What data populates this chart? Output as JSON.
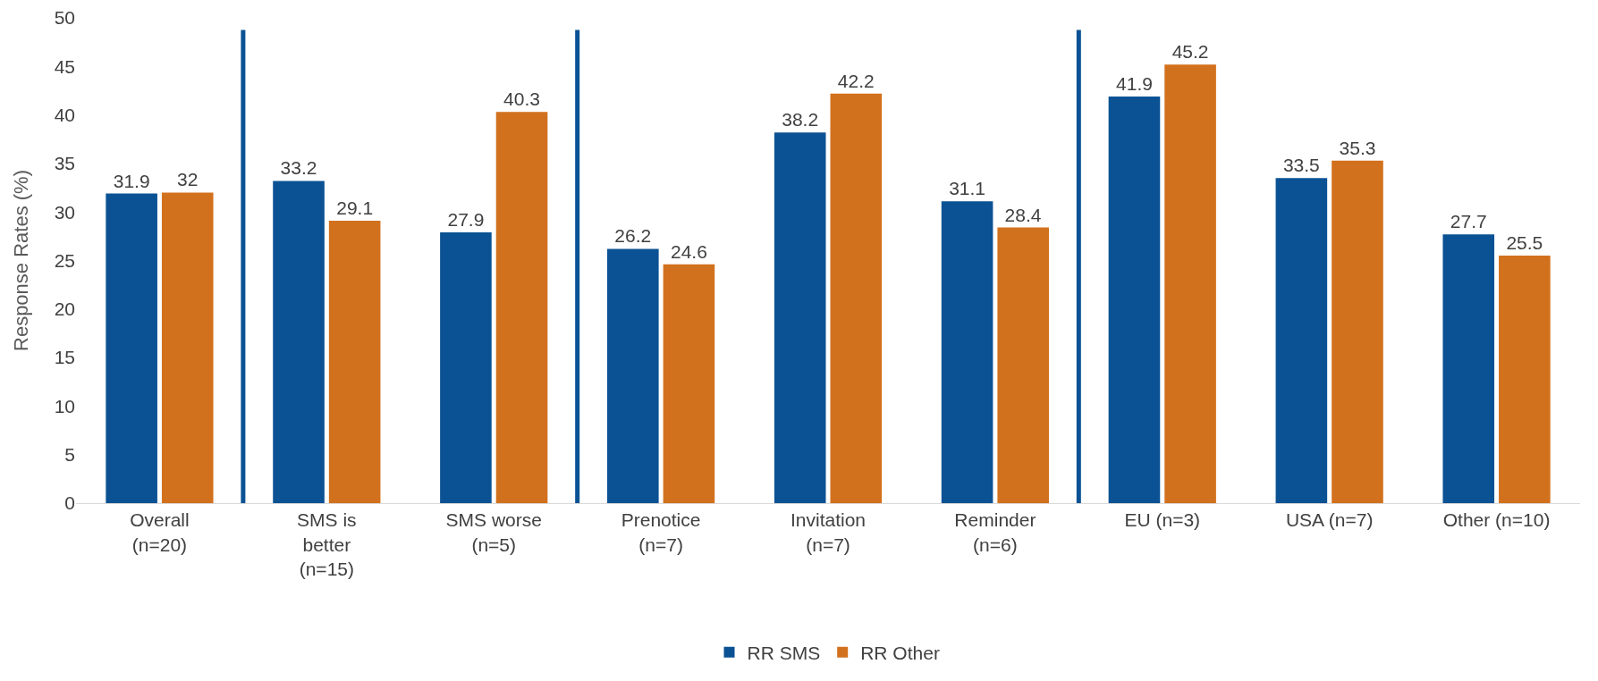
{
  "chart_data": {
    "type": "bar",
    "ylabel": "Response Rates (%)",
    "categories": [
      "Overall\n(n=20)",
      "SMS is\nbetter\n(n=15)",
      "SMS worse\n(n=5)",
      "Prenotice\n(n=7)",
      "Invitation\n(n=7)",
      "Reminder\n(n=6)",
      "EU (n=3)",
      "USA (n=7)",
      "Other (n=10)"
    ],
    "series": [
      {
        "name": "RR SMS",
        "color": "#0b5294",
        "values": [
          31.9,
          33.2,
          27.9,
          26.2,
          38.2,
          31.1,
          41.9,
          33.5,
          27.7
        ]
      },
      {
        "name": "RR Other",
        "color": "#d2711d",
        "values": [
          32,
          29.1,
          40.3,
          24.6,
          42.2,
          28.4,
          45.2,
          35.3,
          25.5
        ]
      }
    ],
    "ylim": [
      0,
      50
    ],
    "yticks": [
      0,
      5,
      10,
      15,
      20,
      25,
      30,
      35,
      40,
      45,
      50
    ],
    "grid": false,
    "legend": "bottom",
    "data_labels": true
  }
}
